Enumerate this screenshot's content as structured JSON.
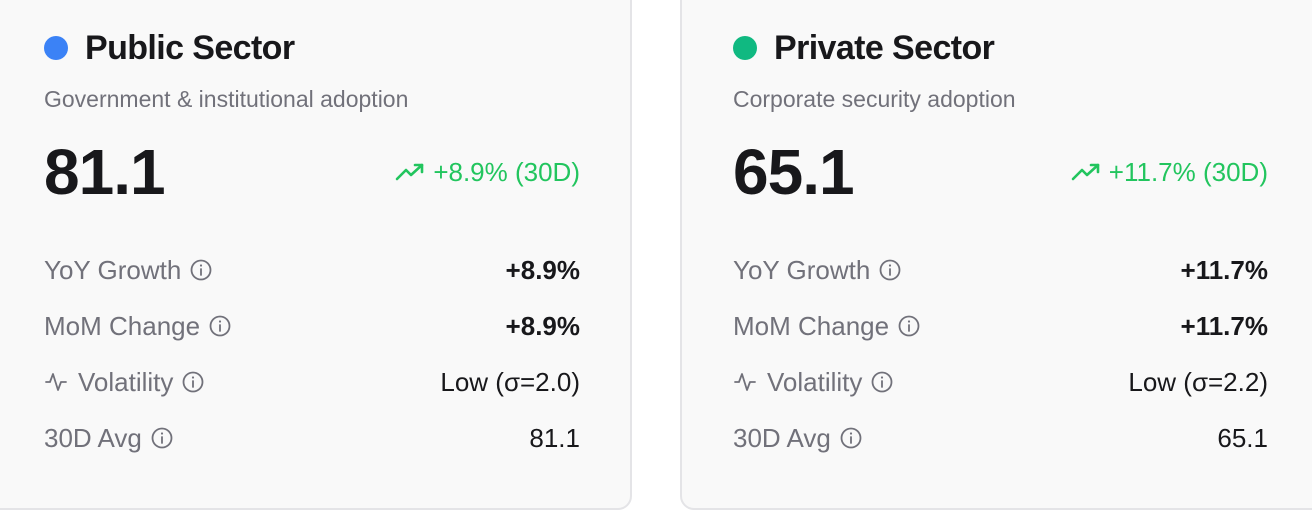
{
  "colors": {
    "public_dot": "#3b82f6",
    "private_dot": "#10b981",
    "positive": "#22c55e"
  },
  "public": {
    "title": "Public Sector",
    "subtitle": "Government & institutional adoption",
    "value": "81.1",
    "trend": "+8.9% (30D)",
    "metrics": [
      {
        "label": "YoY Growth",
        "value": "+8.9%"
      },
      {
        "label": "MoM Change",
        "value": "+8.9%"
      },
      {
        "label": "Volatility",
        "value": "Low (σ=2.0)"
      },
      {
        "label": "30D Avg",
        "value": "81.1"
      }
    ]
  },
  "private": {
    "title": "Private Sector",
    "subtitle": "Corporate security adoption",
    "value": "65.1",
    "trend": "+11.7% (30D)",
    "metrics": [
      {
        "label": "YoY Growth",
        "value": "+11.7%"
      },
      {
        "label": "MoM Change",
        "value": "+11.7%"
      },
      {
        "label": "Volatility",
        "value": "Low (σ=2.2)"
      },
      {
        "label": "30D Avg",
        "value": "65.1"
      }
    ]
  },
  "icons": {
    "trend": "trending-up-icon",
    "info": "info-icon",
    "volatility": "activity-icon"
  }
}
